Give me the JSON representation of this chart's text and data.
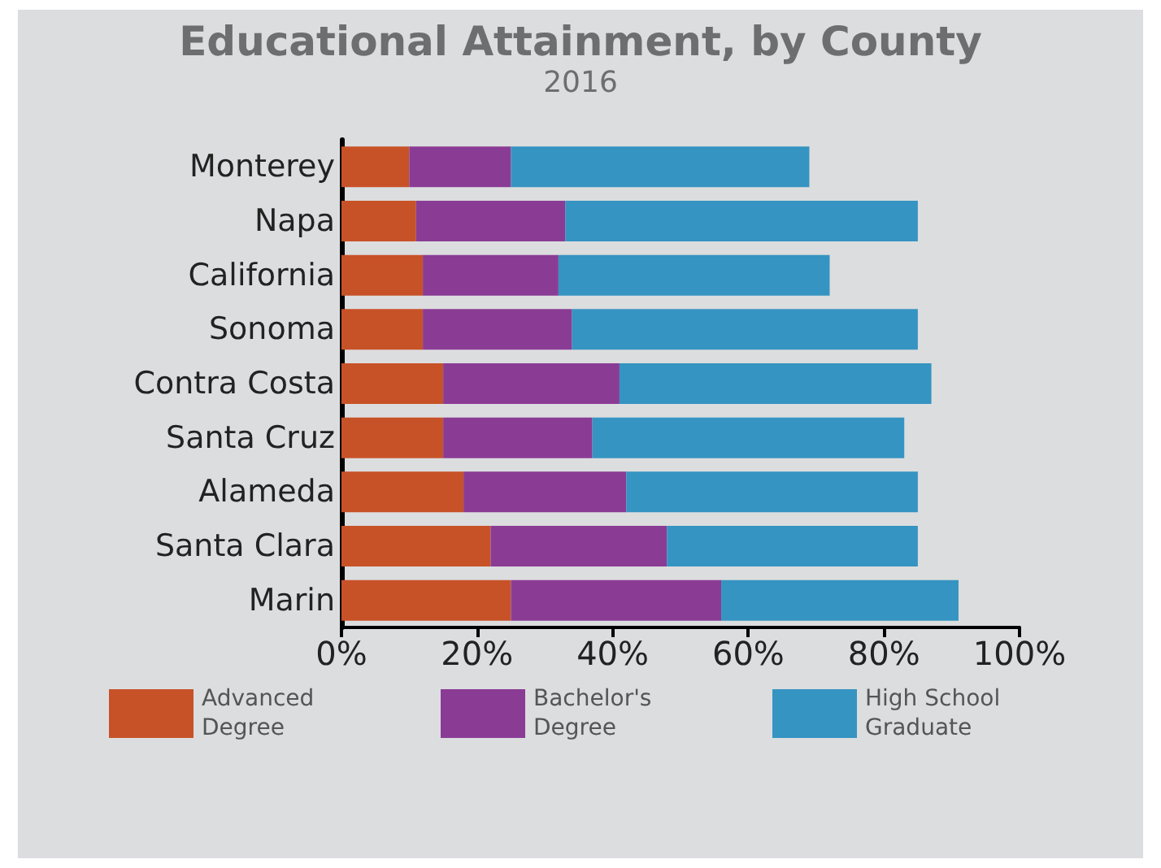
{
  "chart_data": {
    "type": "bar",
    "title": "Educational Attainment, by County",
    "subtitle": "2016",
    "orientation": "horizontal",
    "stacked": true,
    "categories": [
      "Monterey",
      "Napa",
      "California",
      "Sonoma",
      "Contra Costa",
      "Santa Cruz",
      "Alameda",
      "Santa Clara",
      "Marin"
    ],
    "series": [
      {
        "name": "Advanced Degree",
        "color": "#c85228",
        "values": [
          10,
          11,
          12,
          12,
          15,
          15,
          18,
          22,
          25
        ]
      },
      {
        "name": "Bachelor's Degree",
        "color": "#8a3c95",
        "values": [
          15,
          22,
          20,
          22,
          26,
          22,
          24,
          26,
          31
        ]
      },
      {
        "name": "High School Graduate",
        "color": "#3594c1",
        "values": [
          44,
          52,
          40,
          51,
          46,
          46,
          43,
          37,
          35
        ]
      }
    ],
    "xlim": [
      0,
      100
    ],
    "xticks": [
      {
        "value": 0,
        "label": "0%"
      },
      {
        "value": 20,
        "label": "20%"
      },
      {
        "value": 40,
        "label": "40%"
      },
      {
        "value": 60,
        "label": "60%"
      },
      {
        "value": 80,
        "label": "80%"
      },
      {
        "value": 100,
        "label": "100%"
      }
    ],
    "legend": "bottom"
  }
}
